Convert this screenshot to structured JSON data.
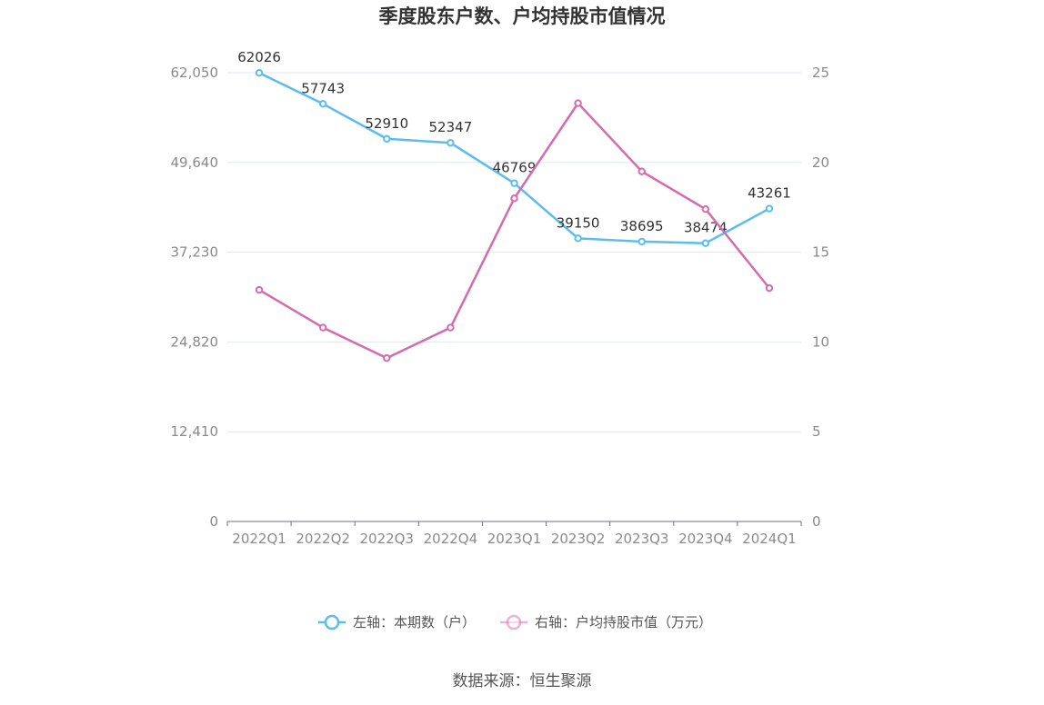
{
  "chart_data": {
    "type": "line",
    "title": "季度股东户数、户均持股市值情况",
    "categories": [
      "2022Q1",
      "2022Q2",
      "2022Q3",
      "2022Q4",
      "2023Q1",
      "2023Q2",
      "2023Q3",
      "2023Q4",
      "2024Q1"
    ],
    "left_axis": {
      "ticks": [
        "0",
        "12,410",
        "24,820",
        "37,230",
        "49,640",
        "62,050"
      ],
      "min": 0,
      "max": 62050
    },
    "right_axis": {
      "ticks": [
        "0",
        "5",
        "10",
        "15",
        "20",
        "25"
      ],
      "min": 0,
      "max": 25
    },
    "series": [
      {
        "name": "左轴：本期数（户）",
        "axis": "left",
        "color": "#5bbcee",
        "values": [
          62026,
          57743,
          52910,
          52347,
          46769,
          39150,
          38695,
          38474,
          43261
        ],
        "labels": [
          "62026",
          "57743",
          "52910",
          "52347",
          "46769",
          "39150",
          "38695",
          "38474",
          "43261"
        ]
      },
      {
        "name": "右轴：户均持股市值（万元）",
        "axis": "right",
        "color": "#d46bb0",
        "values": [
          12.9,
          10.8,
          9.1,
          10.8,
          18.0,
          23.3,
          19.5,
          17.4,
          13.0
        ]
      }
    ],
    "grid": true,
    "legend_position": "bottom"
  },
  "source": "数据来源：恒生聚源"
}
